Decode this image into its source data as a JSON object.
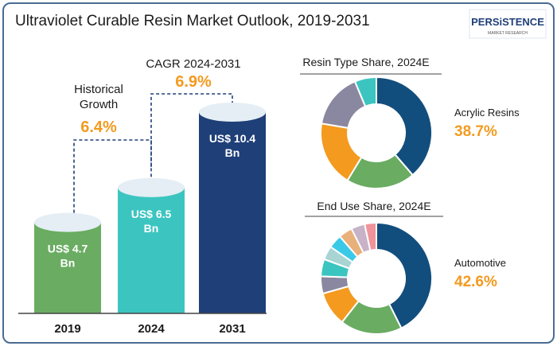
{
  "title": "Ultraviolet Curable Resin Market Outlook, 2019-2031",
  "logo": {
    "main": "PERSiSTENCE",
    "sub": "MARKET RESEARCH"
  },
  "chart_data": [
    {
      "type": "bar",
      "categories": [
        "2019",
        "2024",
        "2031"
      ],
      "values": [
        4.7,
        6.5,
        10.4
      ],
      "data_labels": [
        [
          "US$ 4.7",
          "Bn"
        ],
        [
          "US$ 6.5",
          "Bn"
        ],
        [
          "US$ 10.4",
          "Bn"
        ]
      ],
      "colors": [
        "#6aac62",
        "#3cc5c0",
        "#1f3f78"
      ],
      "annotations": [
        {
          "label_lines": [
            "Historical",
            "Growth"
          ],
          "value": "6.4%"
        },
        {
          "label_lines": [
            "CAGR 2024-2031"
          ],
          "value": "6.9%"
        }
      ]
    },
    {
      "type": "pie",
      "title": "Resin Type Share, 2024E",
      "highlight_label": "Acrylic Resins",
      "highlight_value": "38.7%",
      "values": [
        38.7,
        20,
        19,
        16,
        6.3
      ],
      "colors": [
        "#124e7d",
        "#6aac62",
        "#f39a1f",
        "#8a88a0",
        "#3cc5c0"
      ]
    },
    {
      "type": "pie",
      "title": "End Use Share, 2024E",
      "highlight_label": "Automotive",
      "highlight_value": "42.6%",
      "values": [
        42.6,
        18,
        10,
        5,
        5,
        4,
        4,
        4,
        4,
        3.4
      ],
      "colors": [
        "#124e7d",
        "#6aac62",
        "#f39a1f",
        "#8a88a0",
        "#3cc5c0",
        "#a8d4d4",
        "#3bc9e8",
        "#e8b07a",
        "#c7b2c7",
        "#f0939a"
      ]
    }
  ]
}
